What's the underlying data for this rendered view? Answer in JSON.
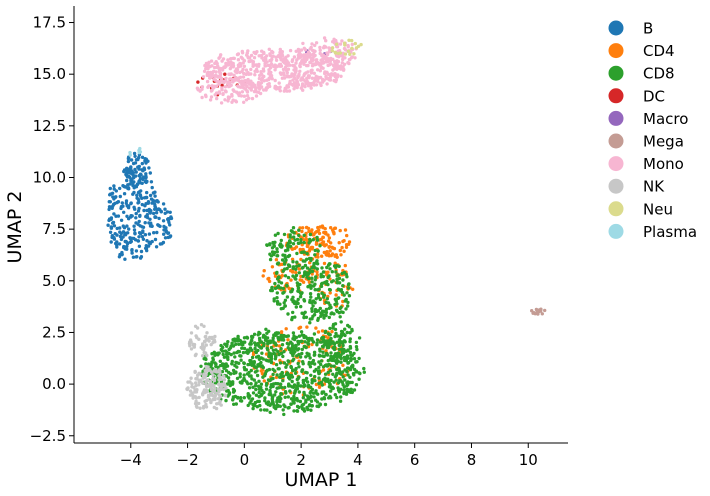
{
  "chart_data": {
    "type": "scatter",
    "title": "",
    "xlabel": "UMAP 1",
    "ylabel": "UMAP 2",
    "xlim": [
      -6.0,
      11.4
    ],
    "ylim": [
      -2.85,
      18.3
    ],
    "xticks": [
      -4,
      -2,
      0,
      2,
      4,
      6,
      8,
      10
    ],
    "xtick_labels": [
      "−4",
      "−2",
      "0",
      "2",
      "4",
      "6",
      "8",
      "10"
    ],
    "yticks": [
      -2.5,
      0.0,
      2.5,
      5.0,
      7.5,
      10.0,
      12.5,
      15.0,
      17.5
    ],
    "ytick_labels": [
      "−2.5",
      "0.0",
      "2.5",
      "5.0",
      "7.5",
      "10.0",
      "12.5",
      "15.0",
      "17.5"
    ],
    "grid": false,
    "legend_position": "outside-right",
    "series": [
      {
        "name": "B",
        "color": "#1f77b4",
        "clusters": [
          {
            "cx": -3.9,
            "cy": 8.2,
            "rx": 0.95,
            "ry": 2.3,
            "n": 260
          },
          {
            "cx": -3.8,
            "cy": 10.4,
            "rx": 0.5,
            "ry": 0.8,
            "n": 60
          },
          {
            "cx": -2.9,
            "cy": 7.6,
            "rx": 0.4,
            "ry": 1.2,
            "n": 40
          }
        ]
      },
      {
        "name": "CD4",
        "color": "#ff7f0e",
        "clusters": [
          {
            "cx": 2.6,
            "cy": 6.9,
            "rx": 1.2,
            "ry": 0.8,
            "n": 130
          },
          {
            "cx": 1.6,
            "cy": 5.3,
            "rx": 1.0,
            "ry": 0.8,
            "n": 70
          },
          {
            "cx": 2.0,
            "cy": 1.2,
            "rx": 1.8,
            "ry": 1.8,
            "n": 120
          },
          {
            "cx": 3.2,
            "cy": 4.8,
            "rx": 0.6,
            "ry": 1.2,
            "n": 40
          }
        ]
      },
      {
        "name": "CD8",
        "color": "#2ca02c",
        "clusters": [
          {
            "cx": 1.3,
            "cy": 0.6,
            "rx": 2.9,
            "ry": 2.0,
            "n": 900
          },
          {
            "cx": 2.4,
            "cy": 4.5,
            "rx": 1.5,
            "ry": 1.6,
            "n": 260
          },
          {
            "cx": 1.7,
            "cy": 6.6,
            "rx": 1.0,
            "ry": 1.0,
            "n": 90
          },
          {
            "cx": 3.4,
            "cy": 2.0,
            "rx": 0.7,
            "ry": 1.0,
            "n": 80
          }
        ]
      },
      {
        "name": "DC",
        "color": "#d62728",
        "clusters": [
          {
            "cx": -0.9,
            "cy": 14.6,
            "rx": 0.9,
            "ry": 0.6,
            "n": 20
          }
        ]
      },
      {
        "name": "Macro",
        "color": "#9467bd",
        "clusters": [
          {
            "cx": 2.6,
            "cy": 16.0,
            "rx": 0.6,
            "ry": 0.3,
            "n": 4
          }
        ]
      },
      {
        "name": "Mega",
        "color": "#c49c94",
        "clusters": [
          {
            "cx": 10.35,
            "cy": 3.5,
            "rx": 0.22,
            "ry": 0.14,
            "n": 14
          }
        ]
      },
      {
        "name": "Mono",
        "color": "#f7b6d2",
        "clusters": [
          {
            "cx": 1.0,
            "cy": 15.2,
            "rx": 2.6,
            "ry": 1.0,
            "n": 520
          },
          {
            "cx": 2.9,
            "cy": 16.0,
            "rx": 1.1,
            "ry": 0.7,
            "n": 120
          },
          {
            "cx": -0.5,
            "cy": 14.2,
            "rx": 1.2,
            "ry": 0.6,
            "n": 100
          }
        ]
      },
      {
        "name": "NK",
        "color": "#c7c7c7",
        "clusters": [
          {
            "cx": -1.3,
            "cy": -0.2,
            "rx": 0.7,
            "ry": 1.1,
            "n": 160
          },
          {
            "cx": -1.5,
            "cy": 2.1,
            "rx": 0.5,
            "ry": 0.8,
            "n": 50
          }
        ]
      },
      {
        "name": "Neu",
        "color": "#dbdb8d",
        "clusters": [
          {
            "cx": 3.6,
            "cy": 16.3,
            "rx": 0.6,
            "ry": 0.4,
            "n": 20
          }
        ]
      },
      {
        "name": "Plasma",
        "color": "#9edae5",
        "clusters": [
          {
            "cx": -3.8,
            "cy": 11.2,
            "rx": 0.3,
            "ry": 0.2,
            "n": 6
          }
        ]
      }
    ]
  }
}
